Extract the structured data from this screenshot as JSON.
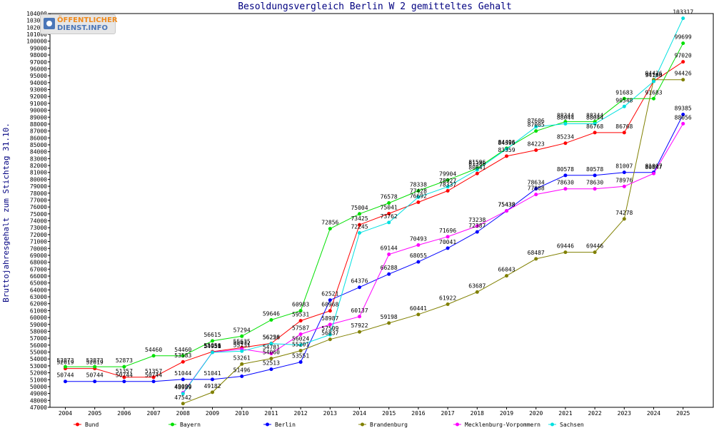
{
  "chart_data": {
    "type": "line",
    "title": "Besoldungsvergleich Berlin W 2 gemitteltes Gehalt",
    "ylabel": "Bruttojahresgehalt zum Stichtag 31.10.",
    "xlabel": "",
    "ylim": [
      47000,
      104000
    ],
    "ytick_step": 1000,
    "grid": false,
    "legend_position": "bottom",
    "categories": [
      "2004",
      "2005",
      "2006",
      "2007",
      "2008",
      "2009",
      "2010",
      "2011",
      "2012",
      "2013",
      "2014",
      "2015",
      "2016",
      "2017",
      "2018",
      "2019",
      "2020",
      "2021",
      "2022",
      "2023",
      "2024",
      "2025"
    ],
    "series": [
      {
        "name": "Bund",
        "color": "#ff0000",
        "values": [
          52619,
          52619,
          51357,
          51357,
          53583,
          55056,
          55635,
          56258,
          59531,
          60968,
          73425,
          75041,
          76692,
          78337,
          80841,
          83359,
          84223,
          85234,
          86768,
          86768,
          94196,
          97020
        ]
      },
      {
        "name": "Bayern",
        "color": "#00e000",
        "values": [
          52873,
          52873,
          52873,
          54460,
          54460,
          56615,
          57294,
          59646,
          60983,
          72856,
          75004,
          76578,
          78338,
          79904,
          81596,
          84496,
          87005,
          88344,
          88344,
          91683,
          91683,
          99699
        ]
      },
      {
        "name": "Berlin",
        "color": "#0000ff",
        "values": [
          50744,
          50744,
          50744,
          50744,
          51044,
          51041,
          51496,
          52513,
          53551,
          62521,
          64376,
          66288,
          68055,
          70041,
          72387,
          75438,
          78634,
          80578,
          80578,
          81007,
          81007,
          89385
        ]
      },
      {
        "name": "Brandenburg",
        "color": "#808000",
        "values": [
          null,
          null,
          null,
          null,
          47542,
          49182,
          53261,
          54060,
          55201,
          56837,
          57922,
          59198,
          60441,
          61922,
          63687,
          66043,
          68487,
          69446,
          69446,
          74278,
          94426,
          94426
        ]
      },
      {
        "name": "Mecklenburg-Vorpommern",
        "color": "#ff00ff",
        "values": [
          null,
          null,
          null,
          null,
          49099,
          54958,
          55432,
          54781,
          57587,
          58987,
          60137,
          69144,
          70493,
          71696,
          73238,
          75438,
          77808,
          78630,
          78630,
          78976,
          80847,
          88056
        ]
      },
      {
        "name": "Sachsen",
        "color": "#00e0e0",
        "values": [
          null,
          null,
          null,
          null,
          48989,
          54951,
          55131,
          56226,
          56024,
          57509,
          72245,
          73762,
          77428,
          78927,
          81386,
          84396,
          87606,
          88044,
          88044,
          90548,
          94180,
          103317
        ]
      }
    ]
  },
  "logo": {
    "line1": "ÖFFENTLICHER",
    "line2": "DIENST.INFO",
    "icon": "logo-mark-icon"
  }
}
